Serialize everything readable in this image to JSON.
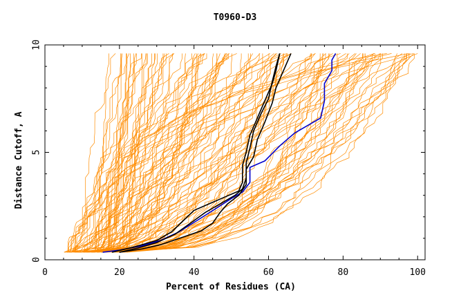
{
  "chart_data": {
    "type": "line",
    "title": "T0960-D3",
    "xlabel": "Percent of Residues (CA)",
    "ylabel": "Distance Cutoff, A",
    "xlim": [
      0,
      102
    ],
    "ylim": [
      0,
      10
    ],
    "x_ticks": [
      "0",
      "20",
      "40",
      "60",
      "80",
      "100"
    ],
    "y_ticks": [
      "0",
      "5",
      "10"
    ],
    "grid": false,
    "background_series": {
      "color": "#ff8c00",
      "description_count": 120,
      "x_start_range": [
        5,
        22
      ],
      "x_end_range": [
        16,
        100
      ],
      "y_range": [
        0.35,
        9.6
      ]
    },
    "series": [
      {
        "color": "#0000cc",
        "points": [
          [
            15.5,
            0.35
          ],
          [
            20,
            0.45
          ],
          [
            26,
            0.65
          ],
          [
            31,
            0.9
          ],
          [
            36,
            1.3
          ],
          [
            41,
            1.85
          ],
          [
            46,
            2.4
          ],
          [
            50,
            2.85
          ],
          [
            53,
            3.15
          ],
          [
            55,
            3.6
          ],
          [
            55,
            4.3
          ],
          [
            59,
            4.6
          ],
          [
            63,
            5.3
          ],
          [
            67,
            5.9
          ],
          [
            71,
            6.3
          ],
          [
            74,
            6.6
          ],
          [
            75,
            7.4
          ],
          [
            75,
            8.2
          ],
          [
            77,
            8.8
          ],
          [
            77,
            9.3
          ],
          [
            78,
            9.6
          ]
        ]
      },
      {
        "color": "#000000",
        "points": [
          [
            20,
            0.35
          ],
          [
            26,
            0.5
          ],
          [
            31,
            0.7
          ],
          [
            37,
            1.05
          ],
          [
            42,
            1.35
          ],
          [
            45,
            1.7
          ],
          [
            47,
            2.2
          ],
          [
            49,
            2.6
          ],
          [
            52,
            3.0
          ],
          [
            54,
            3.5
          ],
          [
            54,
            4.2
          ],
          [
            56,
            4.8
          ],
          [
            57,
            5.6
          ],
          [
            59,
            6.4
          ],
          [
            61,
            7.3
          ],
          [
            62,
            8.0
          ],
          [
            64,
            8.8
          ],
          [
            65,
            9.2
          ],
          [
            66,
            9.6
          ]
        ]
      },
      {
        "color": "#000000",
        "points": [
          [
            20,
            0.35
          ],
          [
            25,
            0.55
          ],
          [
            30,
            0.8
          ],
          [
            35,
            1.2
          ],
          [
            39,
            1.7
          ],
          [
            43,
            2.2
          ],
          [
            47,
            2.6
          ],
          [
            51,
            3.0
          ],
          [
            53,
            3.3
          ],
          [
            54,
            3.8
          ],
          [
            54,
            4.5
          ],
          [
            55,
            5.2
          ],
          [
            56,
            6.0
          ],
          [
            58,
            6.8
          ],
          [
            60,
            7.5
          ],
          [
            61,
            8.3
          ],
          [
            62,
            9.0
          ],
          [
            63,
            9.6
          ]
        ]
      },
      {
        "color": "#000000",
        "points": [
          [
            18,
            0.35
          ],
          [
            24,
            0.6
          ],
          [
            30,
            0.9
          ],
          [
            34,
            1.3
          ],
          [
            37,
            1.8
          ],
          [
            40,
            2.3
          ],
          [
            44,
            2.6
          ],
          [
            48,
            2.9
          ],
          [
            52,
            3.2
          ],
          [
            53,
            3.6
          ],
          [
            53,
            4.4
          ],
          [
            54,
            5.0
          ],
          [
            55,
            5.8
          ],
          [
            57,
            6.6
          ],
          [
            59,
            7.4
          ],
          [
            61,
            8.2
          ],
          [
            62,
            8.8
          ],
          [
            63,
            9.6
          ]
        ]
      }
    ]
  }
}
